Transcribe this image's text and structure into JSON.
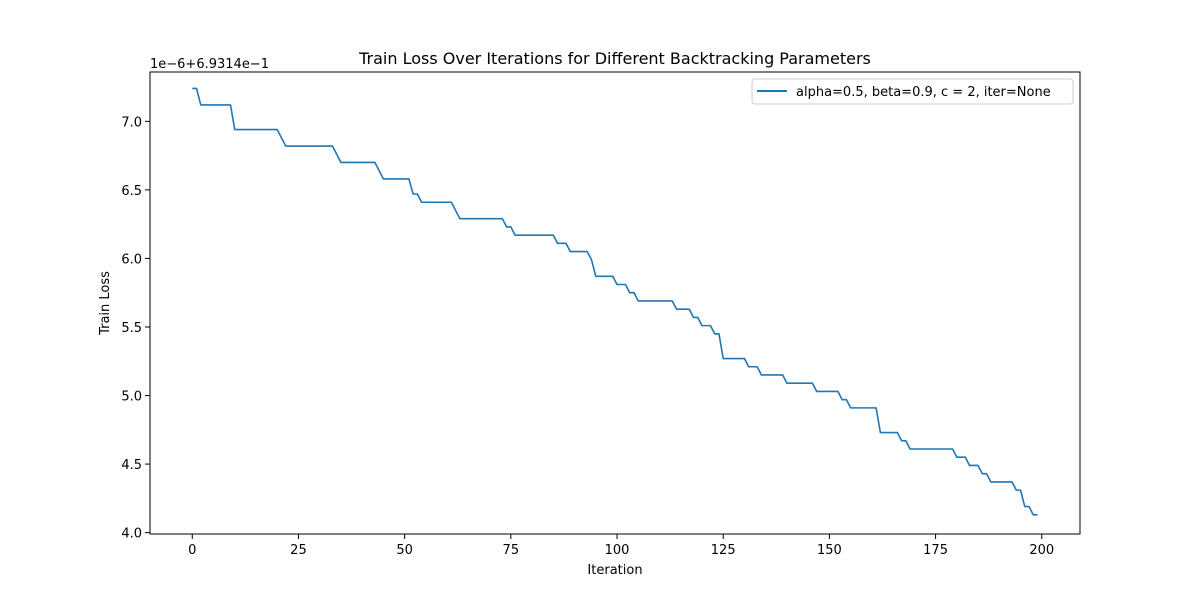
{
  "chart_data": {
    "type": "line",
    "title": "Train Loss Over Iterations for Different Backtracking Parameters",
    "xlabel": "Iteration",
    "ylabel": "Train Loss",
    "offset_label": "1e−6+6.9314e−1",
    "xlim": [
      -9.95,
      209
    ],
    "ylim": [
      3.99,
      7.36
    ],
    "xticks": [
      0,
      25,
      50,
      75,
      100,
      125,
      150,
      175,
      200
    ],
    "yticks": [
      4.0,
      4.5,
      5.0,
      5.5,
      6.0,
      6.5,
      7.0
    ],
    "grid": false,
    "legend_position": "top-right",
    "series": [
      {
        "name": "alpha=0.5, beta=0.9, c = 2, iter=None",
        "color": "#1f77b4",
        "points": [
          [
            0,
            7.24
          ],
          [
            1,
            7.24
          ],
          [
            2,
            7.12
          ],
          [
            9,
            7.12
          ],
          [
            10,
            6.94
          ],
          [
            20,
            6.94
          ],
          [
            22,
            6.82
          ],
          [
            33,
            6.82
          ],
          [
            35,
            6.7
          ],
          [
            43,
            6.7
          ],
          [
            45,
            6.58
          ],
          [
            51,
            6.58
          ],
          [
            52,
            6.47
          ],
          [
            53,
            6.47
          ],
          [
            54,
            6.41
          ],
          [
            61,
            6.41
          ],
          [
            63,
            6.29
          ],
          [
            73,
            6.29
          ],
          [
            74,
            6.23
          ],
          [
            75,
            6.23
          ],
          [
            76,
            6.17
          ],
          [
            85,
            6.17
          ],
          [
            86,
            6.11
          ],
          [
            88,
            6.11
          ],
          [
            89,
            6.05
          ],
          [
            93,
            6.05
          ],
          [
            94,
            5.99
          ],
          [
            95,
            5.87
          ],
          [
            99,
            5.87
          ],
          [
            100,
            5.81
          ],
          [
            102,
            5.81
          ],
          [
            103,
            5.75
          ],
          [
            104,
            5.75
          ],
          [
            105,
            5.69
          ],
          [
            113,
            5.69
          ],
          [
            114,
            5.63
          ],
          [
            117,
            5.63
          ],
          [
            118,
            5.57
          ],
          [
            119,
            5.57
          ],
          [
            120,
            5.51
          ],
          [
            122,
            5.51
          ],
          [
            123,
            5.45
          ],
          [
            124,
            5.45
          ],
          [
            125,
            5.27
          ],
          [
            130,
            5.27
          ],
          [
            131,
            5.21
          ],
          [
            133,
            5.21
          ],
          [
            134,
            5.15
          ],
          [
            139,
            5.15
          ],
          [
            140,
            5.09
          ],
          [
            146,
            5.09
          ],
          [
            147,
            5.03
          ],
          [
            152,
            5.03
          ],
          [
            153,
            4.97
          ],
          [
            154,
            4.97
          ],
          [
            155,
            4.91
          ],
          [
            161,
            4.91
          ],
          [
            162,
            4.73
          ],
          [
            166,
            4.73
          ],
          [
            167,
            4.67
          ],
          [
            168,
            4.67
          ],
          [
            169,
            4.61
          ],
          [
            179,
            4.61
          ],
          [
            180,
            4.55
          ],
          [
            182,
            4.55
          ],
          [
            183,
            4.49
          ],
          [
            185,
            4.49
          ],
          [
            186,
            4.43
          ],
          [
            187,
            4.43
          ],
          [
            188,
            4.37
          ],
          [
            193,
            4.37
          ],
          [
            194,
            4.31
          ],
          [
            195,
            4.31
          ],
          [
            196,
            4.19
          ],
          [
            197,
            4.19
          ],
          [
            198,
            4.13
          ],
          [
            199,
            4.13
          ]
        ]
      }
    ]
  }
}
